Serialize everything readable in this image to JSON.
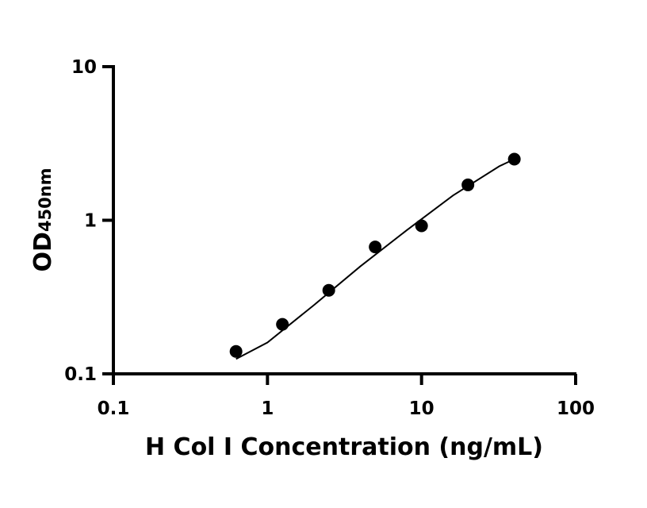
{
  "chart_data": {
    "type": "scatter",
    "xlabel": "H Col I  Concentration (ng/mL)",
    "ylabel": "OD",
    "ylabel_subscript": "450nm",
    "x_scale": "log",
    "y_scale": "log",
    "xlim": [
      0.1,
      100
    ],
    "ylim": [
      0.1,
      10
    ],
    "x_ticks": [
      0.1,
      1,
      10,
      100
    ],
    "x_tick_labels": [
      "0.1",
      "1",
      "10",
      "100"
    ],
    "y_ticks": [
      0.1,
      1,
      10
    ],
    "y_tick_labels": [
      "0.1",
      "1",
      "10"
    ],
    "grid": false,
    "legend": "none",
    "colors": {
      "marker": "#000000",
      "curve": "#000000",
      "axis": "#000000"
    },
    "series": [
      {
        "x": [
          0.625,
          1.25,
          2.5,
          5,
          10,
          20,
          40
        ],
        "y": [
          0.14,
          0.21,
          0.35,
          0.67,
          0.92,
          1.7,
          2.5
        ]
      }
    ],
    "fit_curve": {
      "x": [
        0.625,
        1,
        2,
        4,
        8,
        16,
        32,
        40
      ],
      "y": [
        0.125,
        0.16,
        0.28,
        0.5,
        0.86,
        1.45,
        2.25,
        2.5
      ]
    }
  }
}
